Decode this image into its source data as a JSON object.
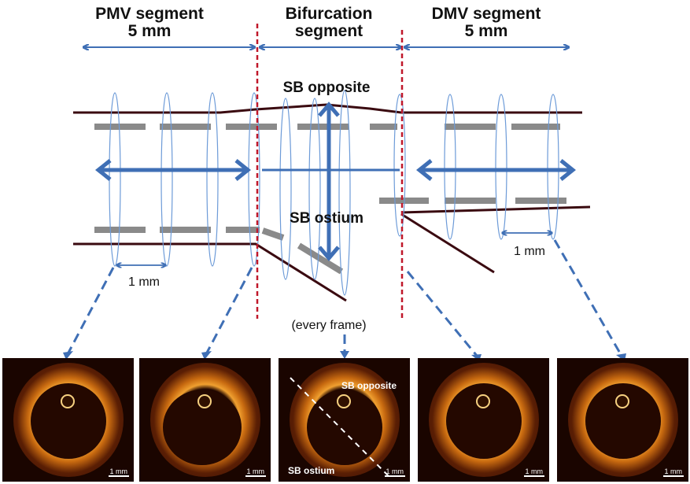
{
  "headers": {
    "pmv": [
      "PMV segment",
      "5 mm"
    ],
    "bifurcation": [
      "Bifurcation",
      "segment"
    ],
    "dmv": [
      "DMV segment",
      "5 mm"
    ]
  },
  "labels": {
    "sb_opposite": "SB opposite",
    "sb_ostium": "SB ostium",
    "spacing_left": "1 mm",
    "spacing_right": "1 mm",
    "every_frame": "(every frame)"
  },
  "panels": [
    {
      "scale": "1 mm"
    },
    {
      "scale": "1 mm"
    },
    {
      "scale": "1 mm",
      "top_label": "SB opposite",
      "bottom_label": "SB ostium"
    },
    {
      "scale": "1 mm"
    },
    {
      "scale": "1 mm"
    }
  ],
  "colors": {
    "arrow": "#3f6fb5",
    "divider": "#c0182a",
    "vessel": "#3a0a10",
    "strut": "#8a8a8a",
    "frame": "#6d9bd8"
  }
}
